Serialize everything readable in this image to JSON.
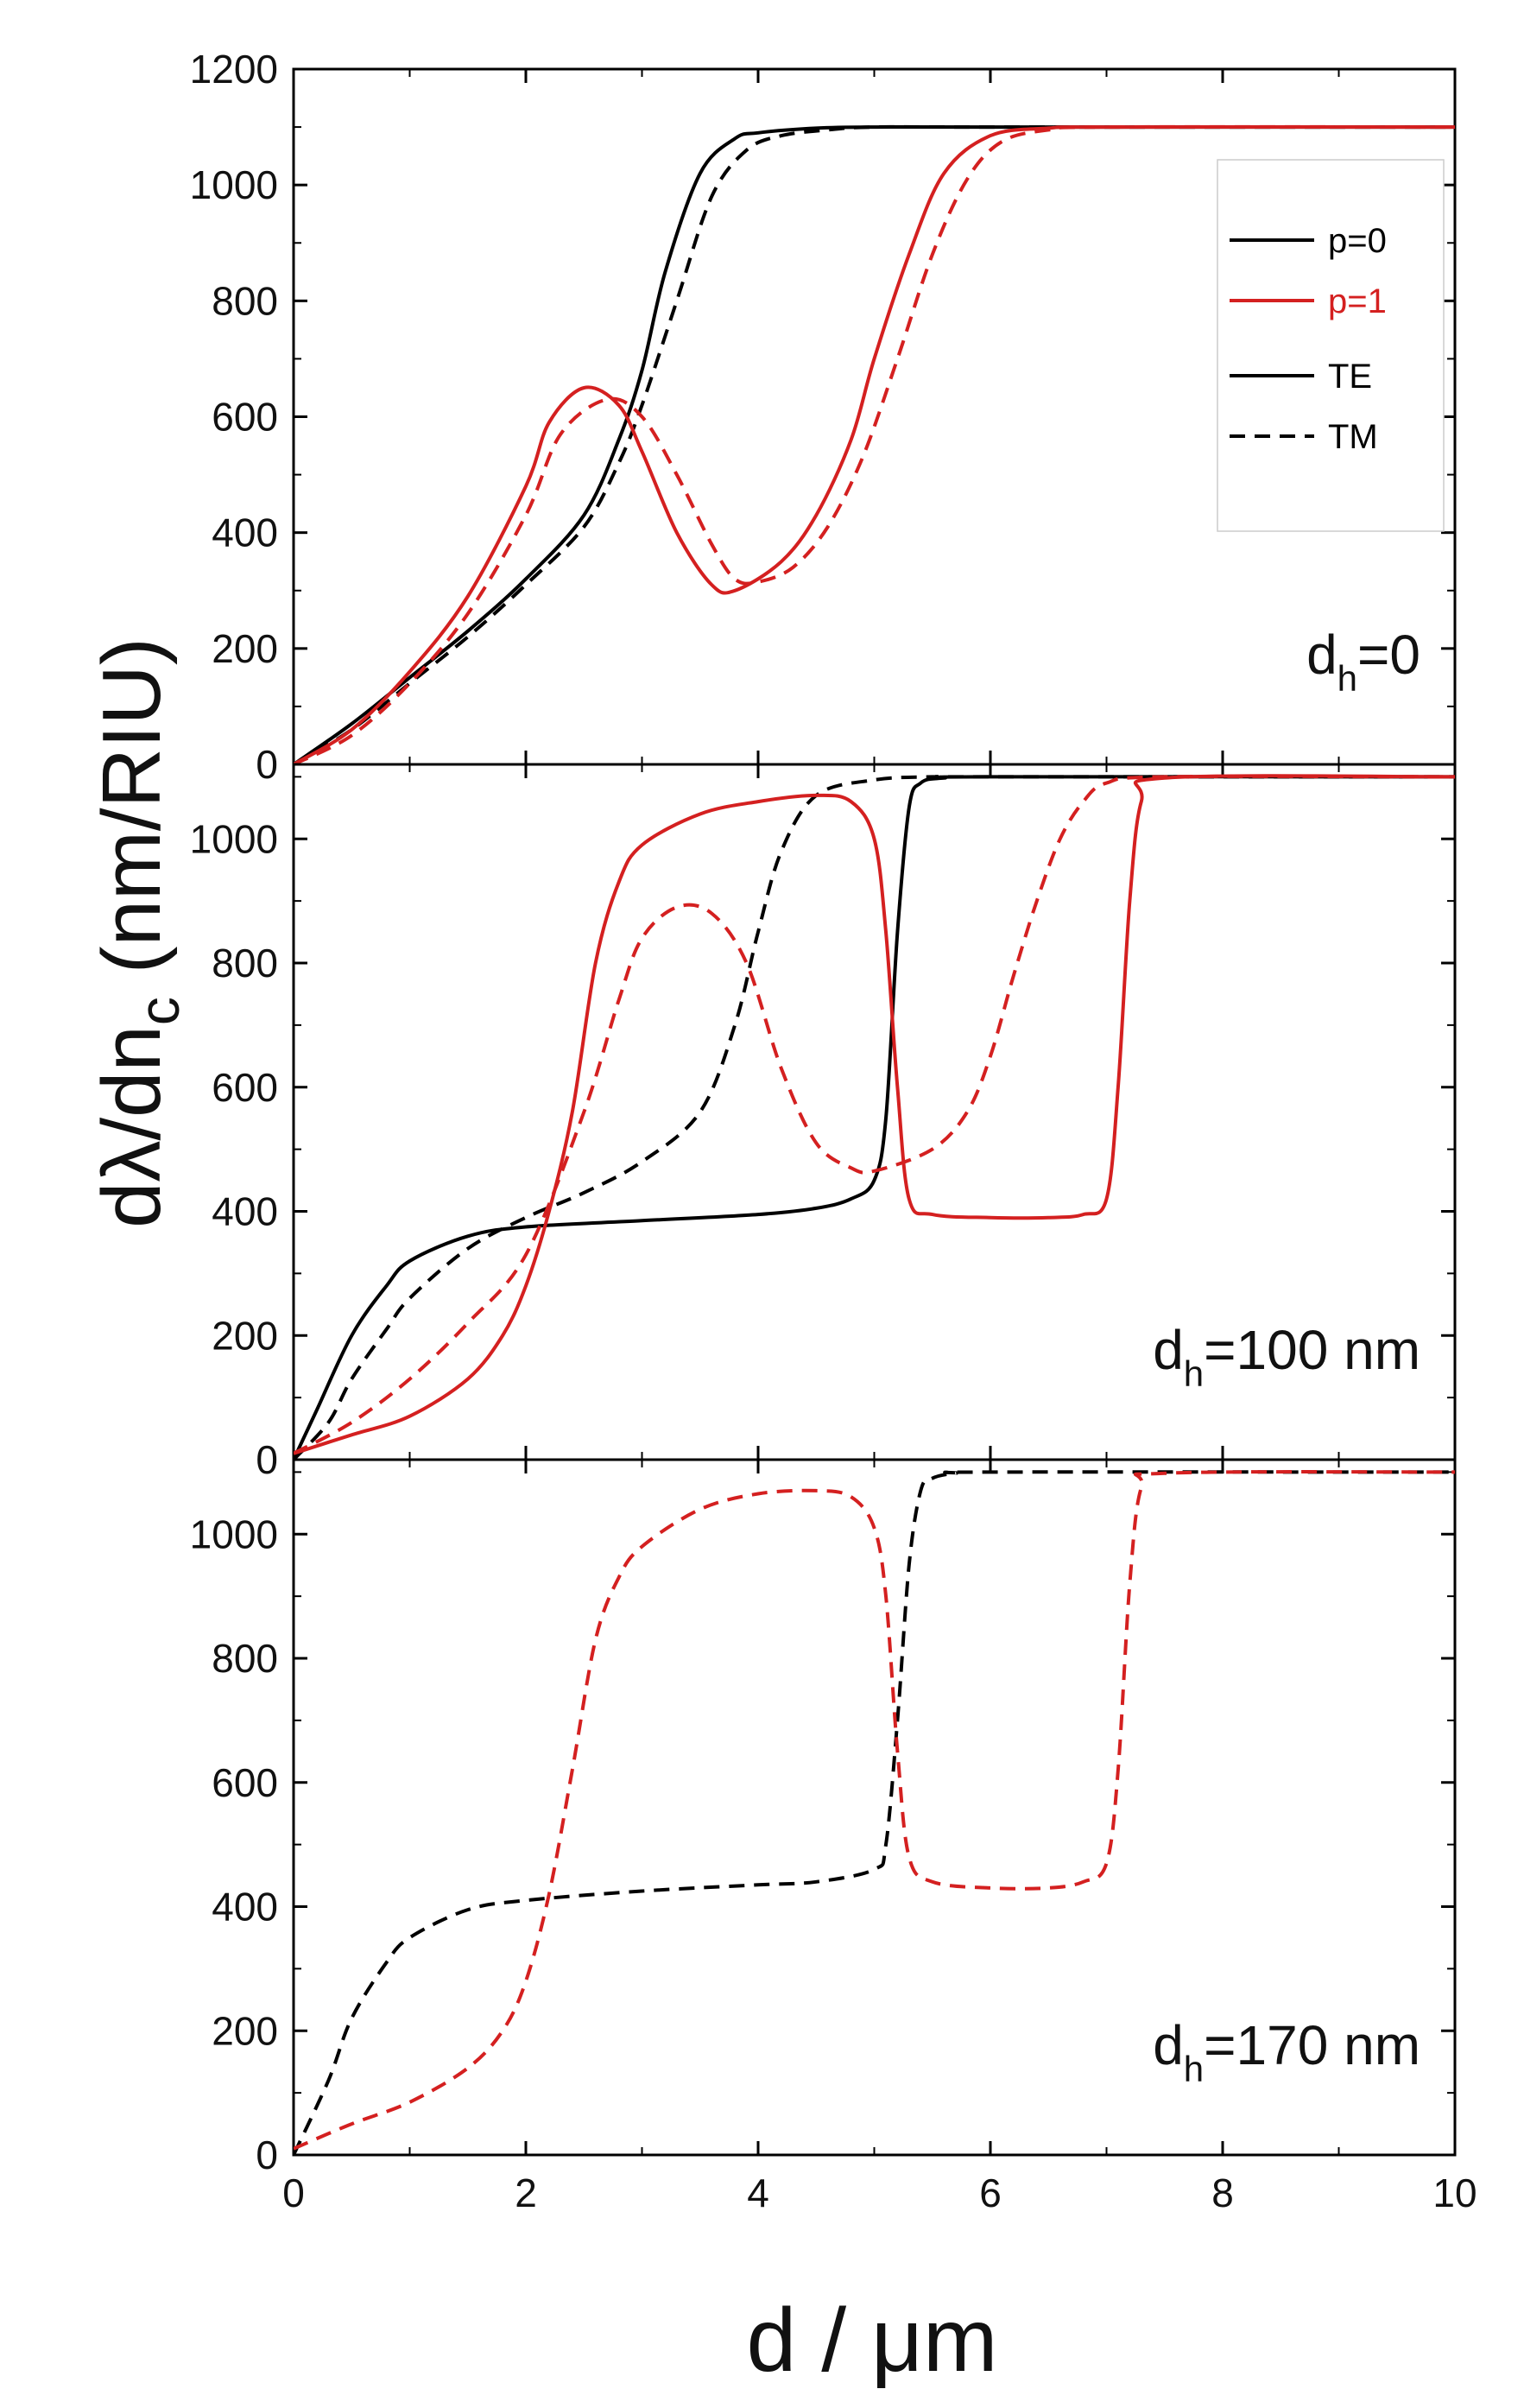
{
  "chart_data": {
    "type": "line",
    "x_label_prefix": "d / ",
    "x_label_unit": "μm",
    "y_label": {
      "prefix": "dλ/dn",
      "sub": "c",
      "suffix": " (nm/RIU)"
    },
    "xlim": [
      0,
      10
    ],
    "x_ticks": [
      0,
      2,
      4,
      6,
      8,
      10
    ],
    "y_ticks": [
      0,
      200,
      400,
      600,
      800,
      1000,
      1200
    ],
    "colors": {
      "p0": "#000000",
      "p1": "#d42020"
    },
    "legend": {
      "items": [
        {
          "label": "p=0",
          "color": "#000000",
          "dash": false
        },
        {
          "label": "p=1",
          "color": "#d42020",
          "dash": false
        },
        {
          "label": "TE",
          "color": "#000000",
          "dash": false
        },
        {
          "label": "TM",
          "color": "#000000",
          "dash": true
        }
      ],
      "placement": "top-right of top panel"
    },
    "panels": [
      {
        "id": "top",
        "label": {
          "main": "d",
          "sub": "h",
          "rest": "=0"
        },
        "ylim": [
          0,
          1200
        ],
        "tick_labels": [
          "0",
          "200",
          "400",
          "600",
          "800",
          "1000",
          "1200"
        ],
        "series": [
          {
            "name": "p=0 TE",
            "color": "#000000",
            "dash": false,
            "x": [
              0,
              0.5,
              1,
              1.5,
              2,
              2.5,
              2.8,
              3,
              3.2,
              3.5,
              3.8,
              4,
              4.5,
              5,
              6,
              10
            ],
            "y": [
              0,
              70,
              150,
              230,
              320,
              430,
              560,
              680,
              850,
              1020,
              1080,
              1090,
              1098,
              1100,
              1100,
              1100
            ]
          },
          {
            "name": "p=0 TM",
            "color": "#000000",
            "dash": true,
            "x": [
              0,
              0.5,
              1,
              1.5,
              2,
              2.5,
              2.8,
              3,
              3.3,
              3.6,
              3.9,
              4.2,
              4.6,
              5,
              6,
              10
            ],
            "y": [
              0,
              60,
              140,
              220,
              310,
              410,
              520,
              620,
              800,
              980,
              1060,
              1085,
              1095,
              1100,
              1100,
              1100
            ]
          },
          {
            "name": "p=1 TE",
            "color": "#d42020",
            "dash": false,
            "x": [
              0,
              0.5,
              1,
              1.5,
              2,
              2.2,
              2.5,
              2.8,
              3,
              3.3,
              3.6,
              3.8,
              4.2,
              4.5,
              4.8,
              5,
              5.3,
              5.6,
              6,
              6.5,
              7,
              10
            ],
            "y": [
              0,
              60,
              160,
              290,
              480,
              590,
              650,
              620,
              540,
              400,
              310,
              300,
              350,
              430,
              560,
              700,
              880,
              1020,
              1085,
              1098,
              1100,
              1100
            ]
          },
          {
            "name": "p=1 TM",
            "color": "#d42020",
            "dash": true,
            "x": [
              0,
              0.5,
              1,
              1.5,
              2,
              2.3,
              2.7,
              3,
              3.3,
              3.6,
              3.8,
              4,
              4.3,
              4.6,
              4.9,
              5.2,
              5.5,
              5.8,
              6.1,
              6.5,
              7,
              10
            ],
            "y": [
              0,
              50,
              140,
              260,
              430,
              570,
              630,
              600,
              500,
              380,
              320,
              315,
              340,
              410,
              530,
              700,
              880,
              1010,
              1075,
              1095,
              1100,
              1100
            ]
          }
        ]
      },
      {
        "id": "middle",
        "label": {
          "main": "d",
          "sub": "h",
          "rest": "=100 nm"
        },
        "ylim": [
          0,
          1120
        ],
        "tick_labels": [
          "0",
          "200",
          "400",
          "600",
          "800",
          "1000"
        ],
        "series": [
          {
            "name": "p=0 TE",
            "color": "#000000",
            "dash": false,
            "x": [
              0,
              0.2,
              0.5,
              0.8,
              1,
              1.5,
              2,
              3,
              4,
              4.5,
              4.8,
              5,
              5.1,
              5.2,
              5.3,
              5.4,
              5.6,
              6,
              10
            ],
            "y": [
              0,
              80,
              200,
              280,
              320,
              360,
              375,
              385,
              395,
              405,
              420,
              450,
              550,
              850,
              1050,
              1090,
              1098,
              1100,
              1100
            ]
          },
          {
            "name": "p=0 TM",
            "color": "#000000",
            "dash": true,
            "x": [
              0,
              0.3,
              0.5,
              0.8,
              1,
              1.5,
              2,
              2.5,
              3,
              3.5,
              3.8,
              4,
              4.2,
              4.5,
              5,
              5.5,
              6,
              10
            ],
            "y": [
              0,
              60,
              130,
              210,
              260,
              340,
              390,
              430,
              480,
              560,
              700,
              850,
              980,
              1070,
              1095,
              1100,
              1100,
              1100
            ]
          },
          {
            "name": "p=1 TE",
            "color": "#d42020",
            "dash": false,
            "x": [
              0,
              0.5,
              1,
              1.5,
              1.8,
              2,
              2.2,
              2.4,
              2.6,
              2.8,
              3,
              3.5,
              4,
              4.5,
              4.8,
              5,
              5.1,
              5.2,
              5.3,
              5.5,
              6,
              6.5,
              6.8,
              7,
              7.1,
              7.2,
              7.3,
              7.5,
              10
            ],
            "y": [
              10,
              40,
              70,
              130,
              200,
              280,
              400,
              560,
              800,
              930,
              990,
              1040,
              1060,
              1070,
              1060,
              1000,
              850,
              600,
              420,
              395,
              390,
              390,
              395,
              420,
              600,
              900,
              1060,
              1098,
              1100
            ]
          },
          {
            "name": "p=1 TM",
            "color": "#d42020",
            "dash": true,
            "x": [
              0,
              0.5,
              1,
              1.5,
              2,
              2.5,
              2.8,
              3,
              3.3,
              3.6,
              3.9,
              4.2,
              4.5,
              4.8,
              5,
              5.5,
              5.8,
              6,
              6.2,
              6.4,
              6.6,
              6.8,
              7,
              7.5,
              10
            ],
            "y": [
              10,
              60,
              130,
              220,
              330,
              560,
              740,
              840,
              890,
              880,
              800,
              630,
              510,
              470,
              465,
              500,
              560,
              650,
              780,
              900,
              1000,
              1060,
              1090,
              1100,
              1100
            ]
          }
        ]
      },
      {
        "id": "bottom",
        "label": {
          "main": "d",
          "sub": "h",
          "rest": "=170 nm"
        },
        "ylim": [
          0,
          1120
        ],
        "tick_labels": [
          "0",
          "200",
          "400",
          "600",
          "800",
          "1000"
        ],
        "series": [
          {
            "name": "p=0 TM",
            "color": "#000000",
            "dash": true,
            "x": [
              0,
              0.3,
              0.5,
              0.8,
              1,
              1.5,
              2,
              3,
              4,
              4.5,
              5,
              5.1,
              5.2,
              5.3,
              5.4,
              5.5,
              5.7,
              6,
              10
            ],
            "y": [
              0,
              120,
              220,
              310,
              350,
              395,
              410,
              425,
              435,
              440,
              460,
              500,
              700,
              950,
              1070,
              1090,
              1098,
              1100,
              1100
            ]
          },
          {
            "name": "p=1 TM",
            "color": "#d42020",
            "dash": true,
            "x": [
              0,
              0.5,
              1,
              1.5,
              1.8,
              2,
              2.2,
              2.4,
              2.6,
              2.8,
              3,
              3.5,
              4,
              4.5,
              4.8,
              5,
              5.1,
              5.2,
              5.3,
              5.5,
              6,
              6.5,
              6.8,
              7,
              7.1,
              7.2,
              7.3,
              7.5,
              10
            ],
            "y": [
              10,
              50,
              85,
              140,
              200,
              280,
              420,
              620,
              830,
              930,
              980,
              1040,
              1065,
              1070,
              1060,
              1010,
              900,
              650,
              480,
              440,
              430,
              430,
              440,
              470,
              620,
              920,
              1075,
              1098,
              1100
            ]
          }
        ]
      }
    ]
  }
}
